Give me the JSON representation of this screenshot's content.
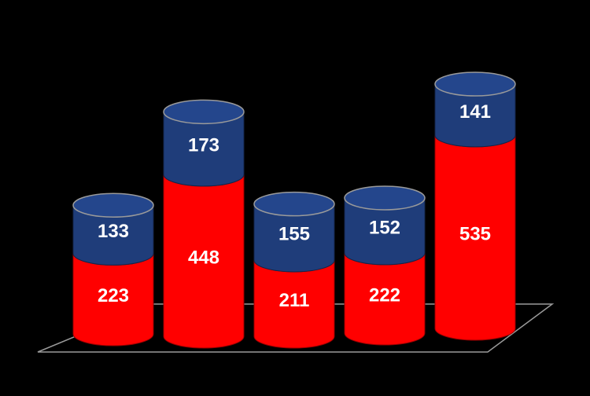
{
  "chart_data": {
    "type": "stacked-cylinder",
    "categories": [
      null,
      null,
      null,
      null,
      null
    ],
    "series": [
      {
        "color": "#ff0000",
        "values": [
          223,
          448,
          211,
          222,
          535
        ]
      },
      {
        "color": "#1f3d7a",
        "values": [
          133,
          173,
          155,
          152,
          141
        ]
      }
    ]
  }
}
